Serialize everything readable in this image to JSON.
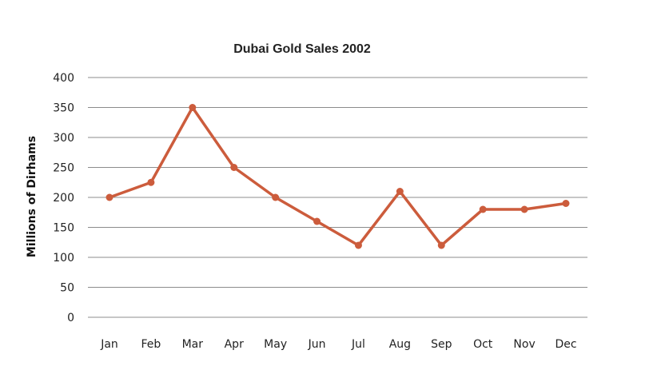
{
  "chart_data": {
    "type": "line",
    "title": "Dubai Gold Sales 2002",
    "xlabel": "",
    "ylabel": "Millions of Dirhams",
    "ylim": [
      0,
      400
    ],
    "yticks": [
      0,
      50,
      100,
      150,
      200,
      250,
      300,
      350,
      400
    ],
    "grid": true,
    "legend": "none",
    "categories": [
      "Jan",
      "Feb",
      "Mar",
      "Apr",
      "May",
      "Jun",
      "Jul",
      "Aug",
      "Sep",
      "Oct",
      "Nov",
      "Dec"
    ],
    "series": [
      {
        "name": "Gold Sales",
        "color": "#cc5c3c",
        "values": [
          200,
          225,
          350,
          250,
          200,
          160,
          120,
          210,
          120,
          180,
          180,
          190
        ]
      }
    ]
  }
}
